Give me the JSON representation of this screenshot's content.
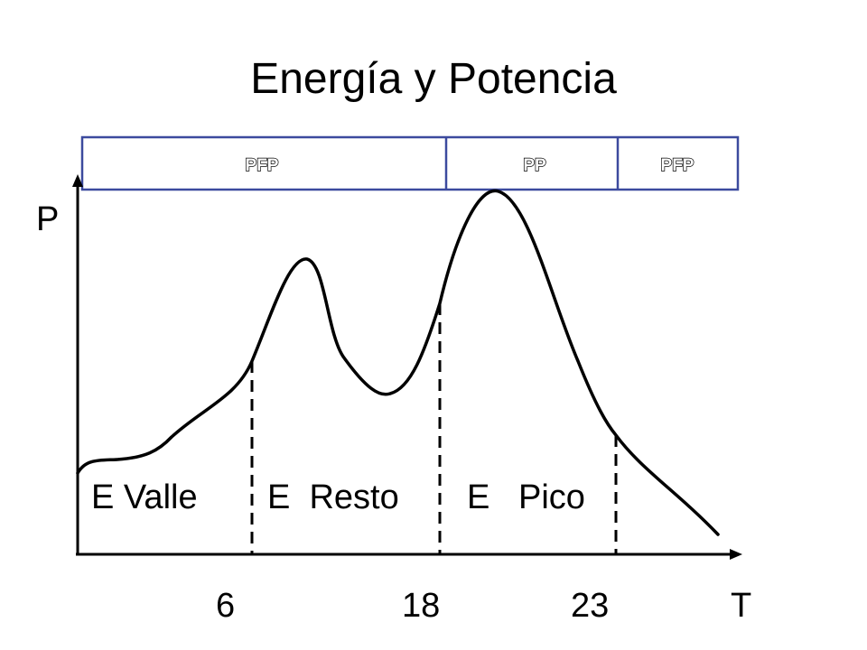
{
  "title": "Energía y Potencia",
  "colors": {
    "band_border": "#3c4a9e",
    "curve": "#000000"
  },
  "bands": [
    {
      "label": "PFP",
      "from_hour": 0,
      "to_hour": 18
    },
    {
      "label": "PP",
      "from_hour": 18,
      "to_hour": 23
    },
    {
      "label": "PFP",
      "from_hour": 23,
      "to_hour": 24
    }
  ],
  "axes": {
    "y_label": "P",
    "x_label": "T"
  },
  "ticks": [
    "6",
    "18",
    "23"
  ],
  "regions": [
    "E Valle",
    "E  Resto",
    "E   Pico"
  ]
}
